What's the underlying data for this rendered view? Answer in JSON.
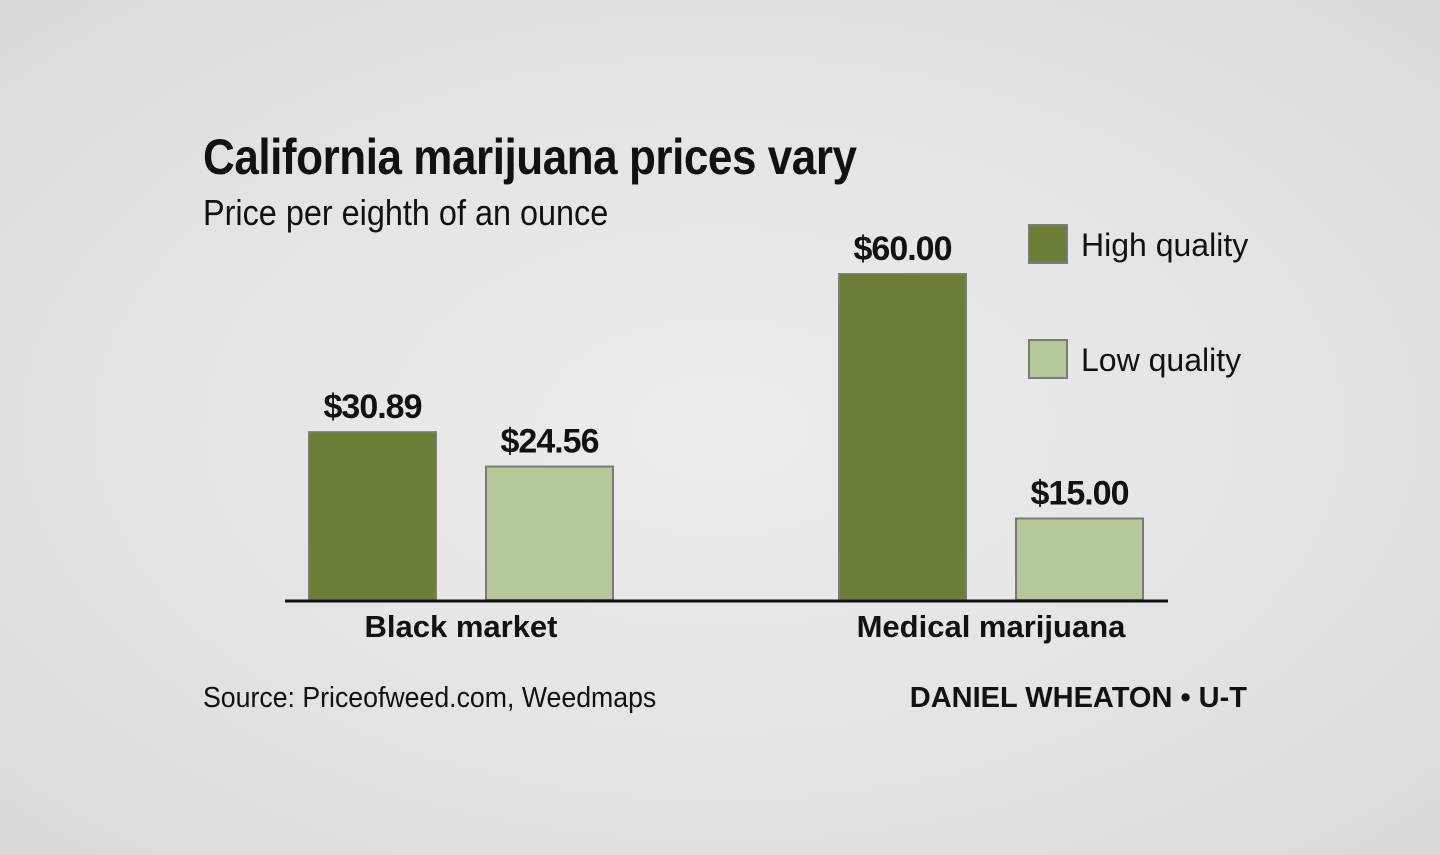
{
  "chart_data": {
    "type": "bar",
    "title": "California marijuana prices vary",
    "subtitle": "Price per eighth of an ounce",
    "categories": [
      "Black market",
      "Medical marijuana"
    ],
    "series": [
      {
        "name": "High quality",
        "values": [
          30.89,
          60.0
        ],
        "labels": [
          "$30.89",
          "$60.00"
        ],
        "color": "#6a7f35"
      },
      {
        "name": "Low quality",
        "values": [
          24.56,
          15.0
        ],
        "labels": [
          "$24.56",
          "$15.00"
        ],
        "color": "#b5c998"
      }
    ],
    "ylim": [
      0,
      60
    ],
    "legend": "top-right",
    "grid": false,
    "axis_color": "#111111",
    "bar_border_color": "#7a7a7a"
  },
  "footer": {
    "source": "Source: Priceofweed.com, Weedmaps",
    "credit": "DANIEL WHEATON • U-T"
  }
}
